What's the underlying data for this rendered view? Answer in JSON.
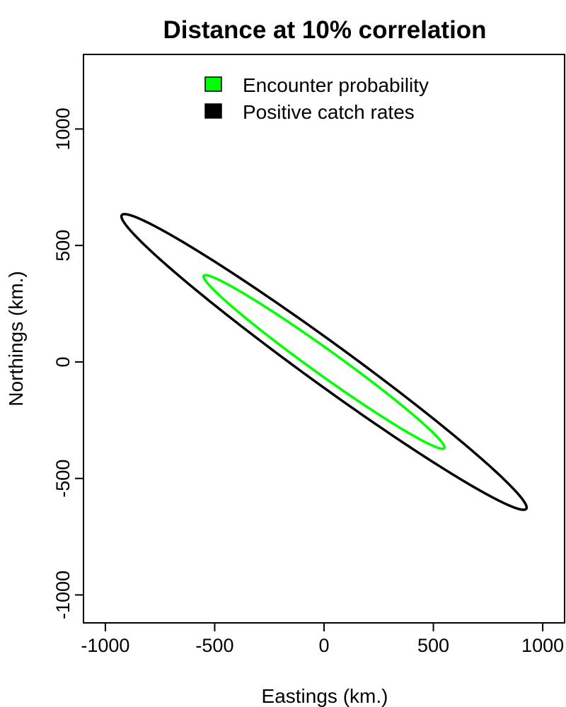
{
  "chart_data": {
    "type": "line",
    "title": "Distance at 10% correlation",
    "xlabel": "Eastings (km.)",
    "ylabel": "Northings (km.)",
    "xlim": [
      -1100,
      1100
    ],
    "ylim": [
      -1120,
      1320
    ],
    "grid": false,
    "x_ticks": [
      {
        "value": -1000,
        "label": "-1000"
      },
      {
        "value": -500,
        "label": "-500"
      },
      {
        "value": 0,
        "label": "0"
      },
      {
        "value": 500,
        "label": "500"
      },
      {
        "value": 1000,
        "label": "1000"
      }
    ],
    "y_ticks": [
      {
        "value": -1000,
        "label": "-1000"
      },
      {
        "value": -500,
        "label": "-500"
      },
      {
        "value": 0,
        "label": "0"
      },
      {
        "value": 500,
        "label": "500"
      },
      {
        "value": 1000,
        "label": "1000"
      }
    ],
    "legend": {
      "placement": "top",
      "entries": [
        {
          "label": "Encounter probability",
          "color": "#00ff00"
        },
        {
          "label": "Positive catch rates",
          "color": "#000000"
        }
      ]
    },
    "series": [
      {
        "name": "Encounter probability",
        "shape": "ellipse",
        "color": "#00ff00",
        "center": [
          0,
          0
        ],
        "vertices": [
          [
            -550,
            370
          ],
          [
            550,
            -370
          ]
        ],
        "half_width": 55
      },
      {
        "name": "Positive catch rates",
        "shape": "ellipse",
        "color": "#000000",
        "center": [
          0,
          0
        ],
        "vertices": [
          [
            -925,
            630
          ],
          [
            925,
            -630
          ]
        ],
        "half_width": 92
      }
    ]
  }
}
